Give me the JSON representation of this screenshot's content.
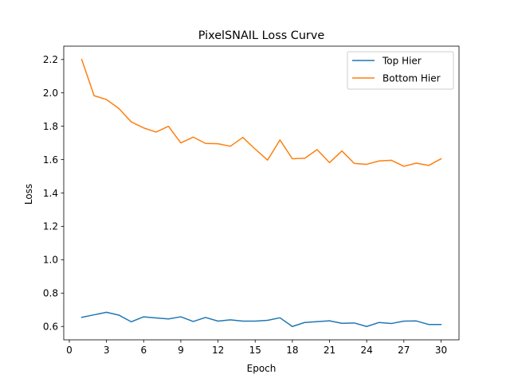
{
  "chart_data": {
    "type": "line",
    "title": "PixelSNAIL Loss Curve",
    "xlabel": "Epoch",
    "ylabel": "Loss",
    "xlim": [
      -0.45,
      31.45
    ],
    "ylim": [
      0.52,
      2.28
    ],
    "xticks": [
      0,
      3,
      6,
      9,
      12,
      15,
      18,
      21,
      24,
      27,
      30
    ],
    "yticks": [
      0.6,
      0.8,
      1.0,
      1.2,
      1.4,
      1.6,
      1.8,
      2.0,
      2.2
    ],
    "ytick_labels": [
      "0.6",
      "0.8",
      "1.0",
      "1.2",
      "1.4",
      "1.6",
      "1.8",
      "2.0",
      "2.2"
    ],
    "grid": false,
    "legend_position": "top-right",
    "x": [
      1,
      2,
      3,
      4,
      5,
      6,
      7,
      8,
      9,
      10,
      11,
      12,
      13,
      14,
      15,
      16,
      17,
      18,
      19,
      20,
      21,
      22,
      23,
      24,
      25,
      26,
      27,
      28,
      29,
      30
    ],
    "series": [
      {
        "name": "Top Hier",
        "color": "#1f77b4",
        "values": [
          0.655,
          0.67,
          0.685,
          0.668,
          0.628,
          0.658,
          0.651,
          0.645,
          0.658,
          0.63,
          0.654,
          0.632,
          0.64,
          0.632,
          0.632,
          0.637,
          0.652,
          0.6,
          0.624,
          0.629,
          0.634,
          0.619,
          0.621,
          0.6,
          0.624,
          0.618,
          0.632,
          0.633,
          0.612,
          0.612
        ]
      },
      {
        "name": "Bottom Hier",
        "color": "#ff7f0e",
        "values": [
          2.2,
          1.983,
          1.96,
          1.906,
          1.826,
          1.79,
          1.765,
          1.8,
          1.7,
          1.735,
          1.697,
          1.695,
          1.68,
          1.733,
          1.663,
          1.597,
          1.718,
          1.605,
          1.608,
          1.66,
          1.582,
          1.652,
          1.577,
          1.572,
          1.592,
          1.596,
          1.56,
          1.579,
          1.565,
          1.605
        ]
      }
    ]
  }
}
